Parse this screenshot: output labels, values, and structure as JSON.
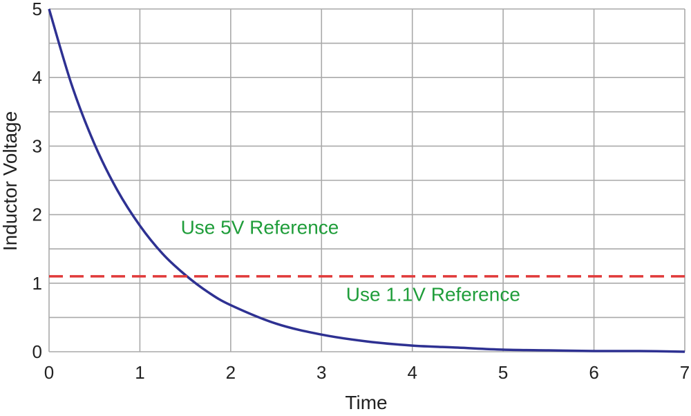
{
  "chart_data": {
    "type": "line",
    "xlabel": "Time",
    "ylabel": "Inductor Voltage",
    "xlim": [
      0,
      7
    ],
    "ylim": [
      0,
      5
    ],
    "x_ticks": [
      0,
      1,
      2,
      3,
      4,
      5,
      6,
      7
    ],
    "y_ticks": [
      0,
      1,
      2,
      3,
      4,
      5
    ],
    "grid": true,
    "series": [
      {
        "color": "#2e3192",
        "x": [
          0,
          0.25,
          0.5,
          0.75,
          1,
          1.25,
          1.5,
          1.75,
          2,
          2.5,
          3,
          3.5,
          4,
          4.5,
          5,
          5.5,
          6,
          6.5,
          7
        ],
        "y": [
          5.0,
          3.89,
          3.03,
          2.36,
          1.84,
          1.43,
          1.12,
          0.87,
          0.68,
          0.41,
          0.25,
          0.15,
          0.09,
          0.06,
          0.03,
          0.02,
          0.01,
          0.01,
          0.0
        ]
      },
      {
        "color": "#e03a3a",
        "style": "dashed",
        "x": [
          0,
          7
        ],
        "y": [
          1.1,
          1.1
        ]
      }
    ],
    "annotations": [
      {
        "text": "Use 5V Reference",
        "x": 1.45,
        "y": 1.72,
        "color": "#1f9d3a"
      },
      {
        "text": "Use 1.1V Reference",
        "x": 3.27,
        "y": 0.74,
        "color": "#1f9d3a"
      }
    ]
  }
}
